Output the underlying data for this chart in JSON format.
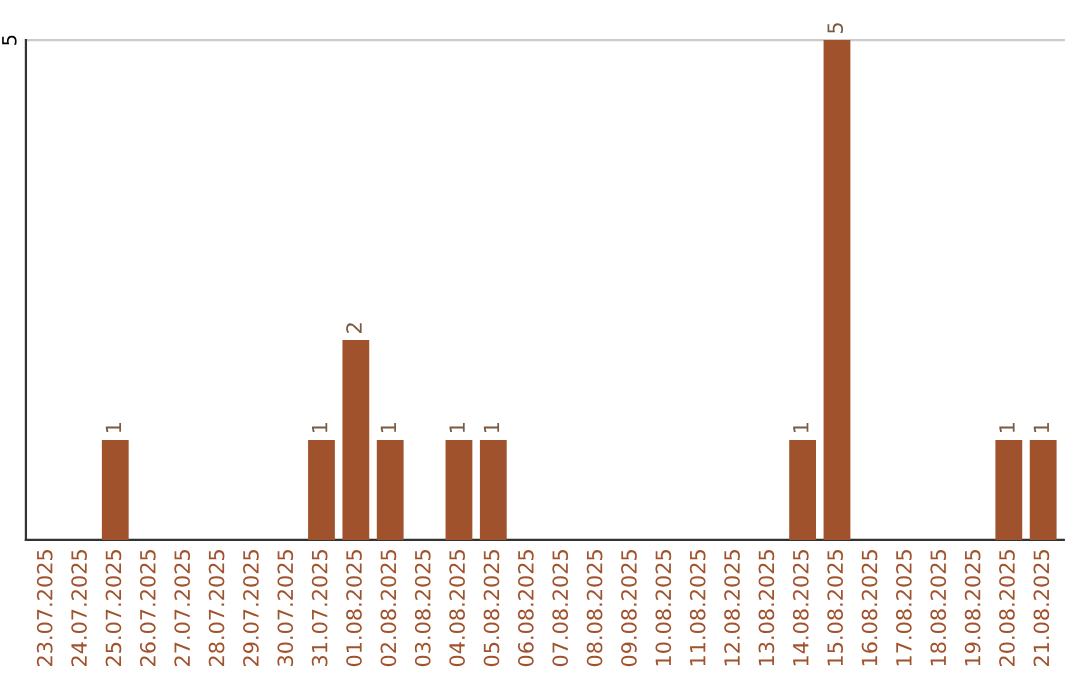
{
  "chart_data": {
    "type": "bar",
    "categories": [
      "23.07.2025",
      "24.07.2025",
      "25.07.2025",
      "26.07.2025",
      "27.07.2025",
      "28.07.2025",
      "29.07.2025",
      "30.07.2025",
      "31.07.2025",
      "01.08.2025",
      "02.08.2025",
      "03.08.2025",
      "04.08.2025",
      "05.08.2025",
      "06.08.2025",
      "07.08.2025",
      "08.08.2025",
      "09.08.2025",
      "10.08.2025",
      "11.08.2025",
      "12.08.2025",
      "13.08.2025",
      "14.08.2025",
      "15.08.2025",
      "16.08.2025",
      "17.08.2025",
      "18.08.2025",
      "19.08.2025",
      "20.08.2025",
      "21.08.2025"
    ],
    "values": [
      0,
      0,
      1,
      0,
      0,
      0,
      0,
      0,
      1,
      2,
      1,
      0,
      1,
      1,
      0,
      0,
      0,
      0,
      0,
      0,
      0,
      0,
      1,
      5,
      0,
      0,
      0,
      0,
      1,
      1
    ],
    "value_labels": [
      null,
      null,
      "1",
      null,
      null,
      null,
      null,
      null,
      "1",
      "2",
      "1",
      null,
      "1",
      "1",
      null,
      null,
      null,
      null,
      null,
      null,
      null,
      null,
      "1",
      "5",
      null,
      null,
      null,
      null,
      "1",
      "1"
    ],
    "color": "#a0522d",
    "ylim": [
      0,
      5
    ],
    "yticks": [
      5
    ],
    "ref_lines": [
      {
        "axis": "y",
        "value": 5,
        "color": "#cccccc"
      }
    ],
    "legend": false
  }
}
